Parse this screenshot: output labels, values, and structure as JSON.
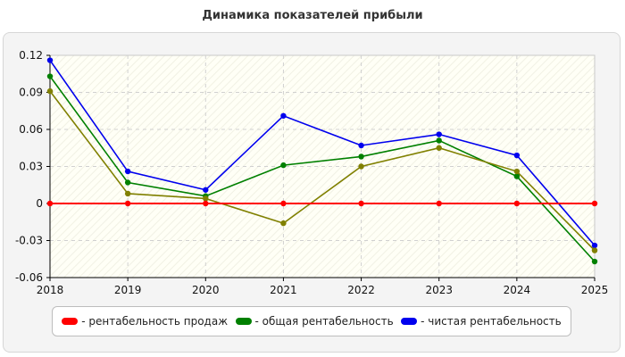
{
  "chart_data": {
    "type": "line",
    "title": "Динамика показателей прибыли",
    "xlabel": "",
    "ylabel": "",
    "x": [
      2018,
      2019,
      2020,
      2021,
      2022,
      2023,
      2024,
      2025
    ],
    "ylim": [
      -0.06,
      0.12
    ],
    "x_tick_labels": [
      "2018",
      "2019",
      "2020",
      "2021",
      "2022",
      "2023",
      "2024",
      "2025"
    ],
    "y_ticks": [
      0.12,
      0.09,
      0.06,
      0.03,
      0,
      -0.03,
      -0.06
    ],
    "y_tick_labels": [
      "0.12",
      "0.09",
      "0.06",
      "0.03",
      "0",
      "-0.03",
      "-0.06"
    ],
    "grid": true,
    "legend_position": "bottom",
    "series": [
      {
        "name": "- рентабельность продаж",
        "color": "#ff0000",
        "values": [
          0,
          0,
          0,
          0,
          0,
          0,
          0,
          0
        ]
      },
      {
        "name": "- общая рентабельность",
        "color": "#008000",
        "values": [
          0.103,
          0.017,
          0.006,
          0.031,
          0.038,
          0.051,
          0.022,
          -0.047
        ]
      },
      {
        "name": "- чистая рентабельность",
        "color": "#0000ee",
        "values": [
          0.116,
          0.026,
          0.011,
          0.071,
          0.047,
          0.056,
          0.039,
          -0.034
        ]
      },
      {
        "name": "",
        "color": "#808000",
        "values": [
          0.091,
          0.008,
          0.004,
          -0.016,
          0.03,
          0.045,
          0.026,
          -0.038
        ]
      }
    ]
  }
}
